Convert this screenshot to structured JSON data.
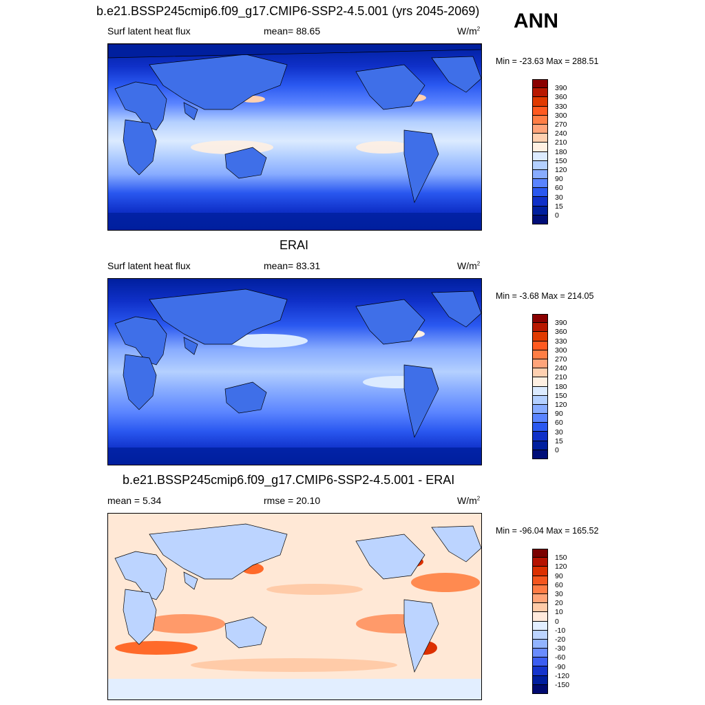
{
  "header": {
    "title": "b.e21.BSSP245cmip6.f09_g17.CMIP6-SSP2-4.5.001 (yrs 2045-2069)",
    "season": "ANN"
  },
  "panels": [
    {
      "id": "model",
      "variable": "Surf latent heat flux",
      "stat_text": "mean=  88.65",
      "units_base": "W/m",
      "units_exp": "2",
      "minmax": "Min = -23.63 Max = 288.51",
      "colorbar": {
        "labels": [
          "390",
          "360",
          "330",
          "300",
          "270",
          "240",
          "210",
          "180",
          "150",
          "120",
          "90",
          "60",
          "30",
          "15",
          "0"
        ],
        "colors": [
          "#8a0000",
          "#b81800",
          "#e03a00",
          "#ff5a20",
          "#ff7e45",
          "#ffa47a",
          "#ffd0b0",
          "#fff0e2",
          "#dcebff",
          "#b4d0ff",
          "#88acff",
          "#5a84ff",
          "#2a58f0",
          "#0f30c8",
          "#001f9e",
          "#000e78"
        ]
      }
    },
    {
      "id": "obs",
      "header": "ERAI",
      "variable": "Surf latent heat flux",
      "stat_text": "mean=  83.31",
      "units_base": "W/m",
      "units_exp": "2",
      "minmax": "Min =  -3.68 Max = 214.05",
      "colorbar": {
        "labels": [
          "390",
          "360",
          "330",
          "300",
          "270",
          "240",
          "210",
          "180",
          "150",
          "120",
          "90",
          "60",
          "30",
          "15",
          "0"
        ],
        "colors": [
          "#8a0000",
          "#b81800",
          "#e03a00",
          "#ff5a20",
          "#ff7e45",
          "#ffa47a",
          "#ffd0b0",
          "#fff0e2",
          "#dcebff",
          "#b4d0ff",
          "#88acff",
          "#5a84ff",
          "#2a58f0",
          "#0f30c8",
          "#001f9e",
          "#000e78"
        ]
      }
    },
    {
      "id": "diff",
      "header": "b.e21.BSSP245cmip6.f09_g17.CMIP6-SSP2-4.5.001 - ERAI",
      "mean_text": "mean =   5.34",
      "rmse_text": "rmse =  20.10",
      "units_base": "W/m",
      "units_exp": "2",
      "minmax": "Min = -96.04 Max = 165.52",
      "colorbar": {
        "labels": [
          "150",
          "120",
          "90",
          "60",
          "30",
          "20",
          "10",
          "0",
          "-10",
          "-20",
          "-30",
          "-60",
          "-90",
          "-120",
          "-150"
        ],
        "colors": [
          "#7a0000",
          "#b51200",
          "#dc3000",
          "#f5561e",
          "#ff7c45",
          "#ffa478",
          "#ffcba8",
          "#ffeadc",
          "#e2eeff",
          "#bcd4ff",
          "#92b4ff",
          "#6a8cff",
          "#3c5ef2",
          "#1534cc",
          "#001e9e",
          "#000a70"
        ]
      }
    }
  ],
  "palette": {
    "ocean_deep": "#0b2a9e",
    "ocean_mid": "#2a58f0",
    "ocean_high": "#88acff",
    "ocean_top": "#dcebff",
    "land": "#3f6fe8",
    "diff_bg": "#ffe8d6",
    "diff_pos": "#ff6a2a",
    "diff_neg": "#9cbcff"
  }
}
